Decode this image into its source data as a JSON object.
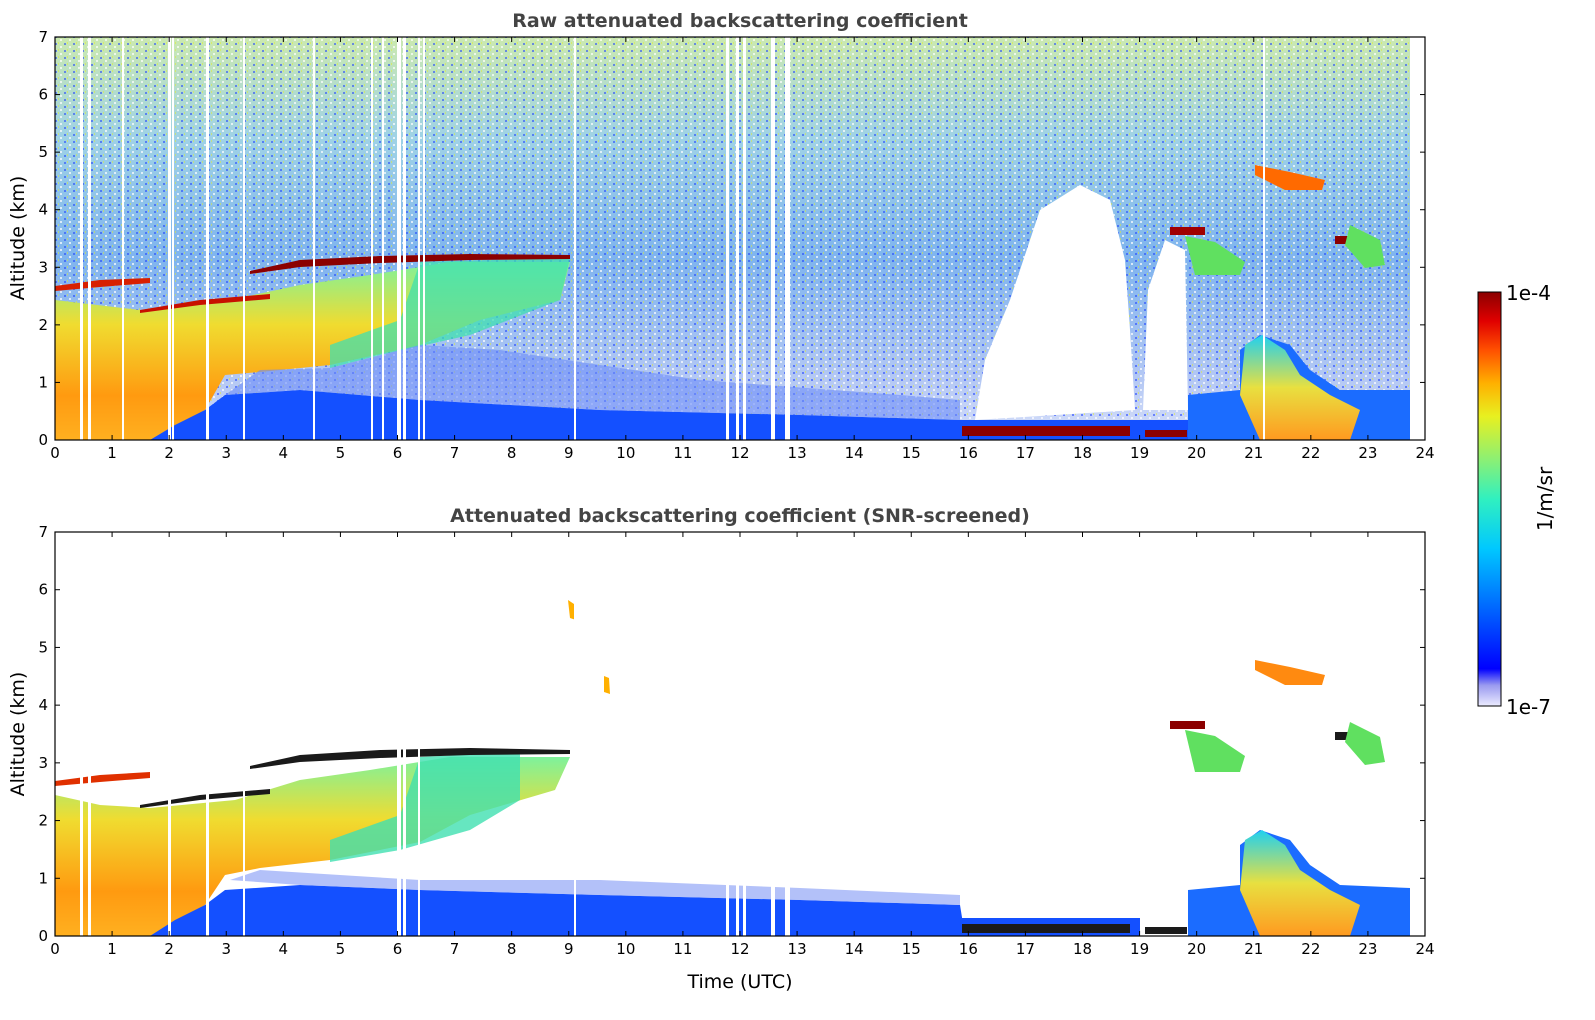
{
  "chart_data": [
    {
      "type": "heatmap",
      "title": "Raw attenuated backscattering coefficient",
      "xlabel": "",
      "ylabel": "Altitude (km)",
      "xlim": [
        0,
        24
      ],
      "ylim": [
        0,
        7
      ],
      "x_ticks": [
        "0",
        "1",
        "2",
        "3",
        "4",
        "5",
        "6",
        "7",
        "8",
        "9",
        "10",
        "11",
        "12",
        "13",
        "14",
        "15",
        "16",
        "17",
        "18",
        "19",
        "20",
        "21",
        "22",
        "23",
        "24"
      ],
      "y_ticks": [
        "0",
        "1",
        "2",
        "3",
        "4",
        "5",
        "6",
        "7"
      ],
      "data_end_hour": 23.75,
      "missing_profiles_hours": [
        0.45,
        0.58,
        1.2,
        1.98,
        2.02,
        2.65,
        3.3,
        4.55,
        5.55,
        5.75,
        6.05,
        6.12,
        6.38,
        6.45,
        9.08,
        11.75,
        11.9,
        12.05,
        12.6,
        12.85,
        21.2
      ],
      "features": [
        {
          "name": "elevated aerosol layer top",
          "start_hour": 3.4,
          "end_hour": 9.0,
          "altitude_km": 3.2,
          "level": "strong"
        },
        {
          "name": "early layer",
          "start_hour": 0.0,
          "end_hour": 1.6,
          "altitude_km": 2.7,
          "level": "strong"
        },
        {
          "name": "descending layer",
          "start_hour": 1.6,
          "end_hour": 3.7,
          "altitude_km": 2.35,
          "level": "strong"
        },
        {
          "name": "low cloud",
          "start_hour": 15.9,
          "end_hour": 18.75,
          "altitude_km": 0.2,
          "level": "saturated"
        },
        {
          "name": "low cloud 2",
          "start_hour": 19.05,
          "end_hour": 19.8,
          "altitude_km": 0.15,
          "level": "saturated"
        },
        {
          "name": "mid cloud",
          "start_hour": 19.7,
          "end_hour": 20.05,
          "altitude_km": 3.65,
          "level": "saturated"
        },
        {
          "name": "high cloud",
          "start_hour": 21.1,
          "end_hour": 22.3,
          "altitude_km": 4.55,
          "level": "strong"
        },
        {
          "name": "high cloud 2",
          "start_hour": 22.6,
          "end_hour": 23.0,
          "altitude_km": 3.45,
          "level": "saturated"
        },
        {
          "name": "evening boundary layer",
          "start_hour": 20.9,
          "end_hour": 23.75,
          "top_km": 1.7,
          "level": "moderate"
        }
      ]
    },
    {
      "type": "heatmap",
      "title": "Attenuated backscattering coefficient (SNR-screened)",
      "xlabel": "Time (UTC)",
      "ylabel": "Altitude (km)",
      "xlim": [
        0,
        24
      ],
      "ylim": [
        0,
        7
      ],
      "x_ticks": [
        "0",
        "1",
        "2",
        "3",
        "4",
        "5",
        "6",
        "7",
        "8",
        "9",
        "10",
        "11",
        "12",
        "13",
        "14",
        "15",
        "16",
        "17",
        "18",
        "19",
        "20",
        "21",
        "22",
        "23",
        "24"
      ],
      "y_ticks": [
        "0",
        "1",
        "2",
        "3",
        "4",
        "5",
        "6",
        "7"
      ],
      "screened": true
    }
  ],
  "colorbar": {
    "label": "1/m/sr",
    "max_label": "1e-4",
    "min_label": "1e-7",
    "scale": "log",
    "colors": [
      "#ececff",
      "#c4c4f4",
      "#9a9af0",
      "#0000ff",
      "#0070ff",
      "#00c8ff",
      "#30f0c0",
      "#90f070",
      "#e8f020",
      "#ffb000",
      "#ff5000",
      "#e00000",
      "#8b0000"
    ]
  }
}
